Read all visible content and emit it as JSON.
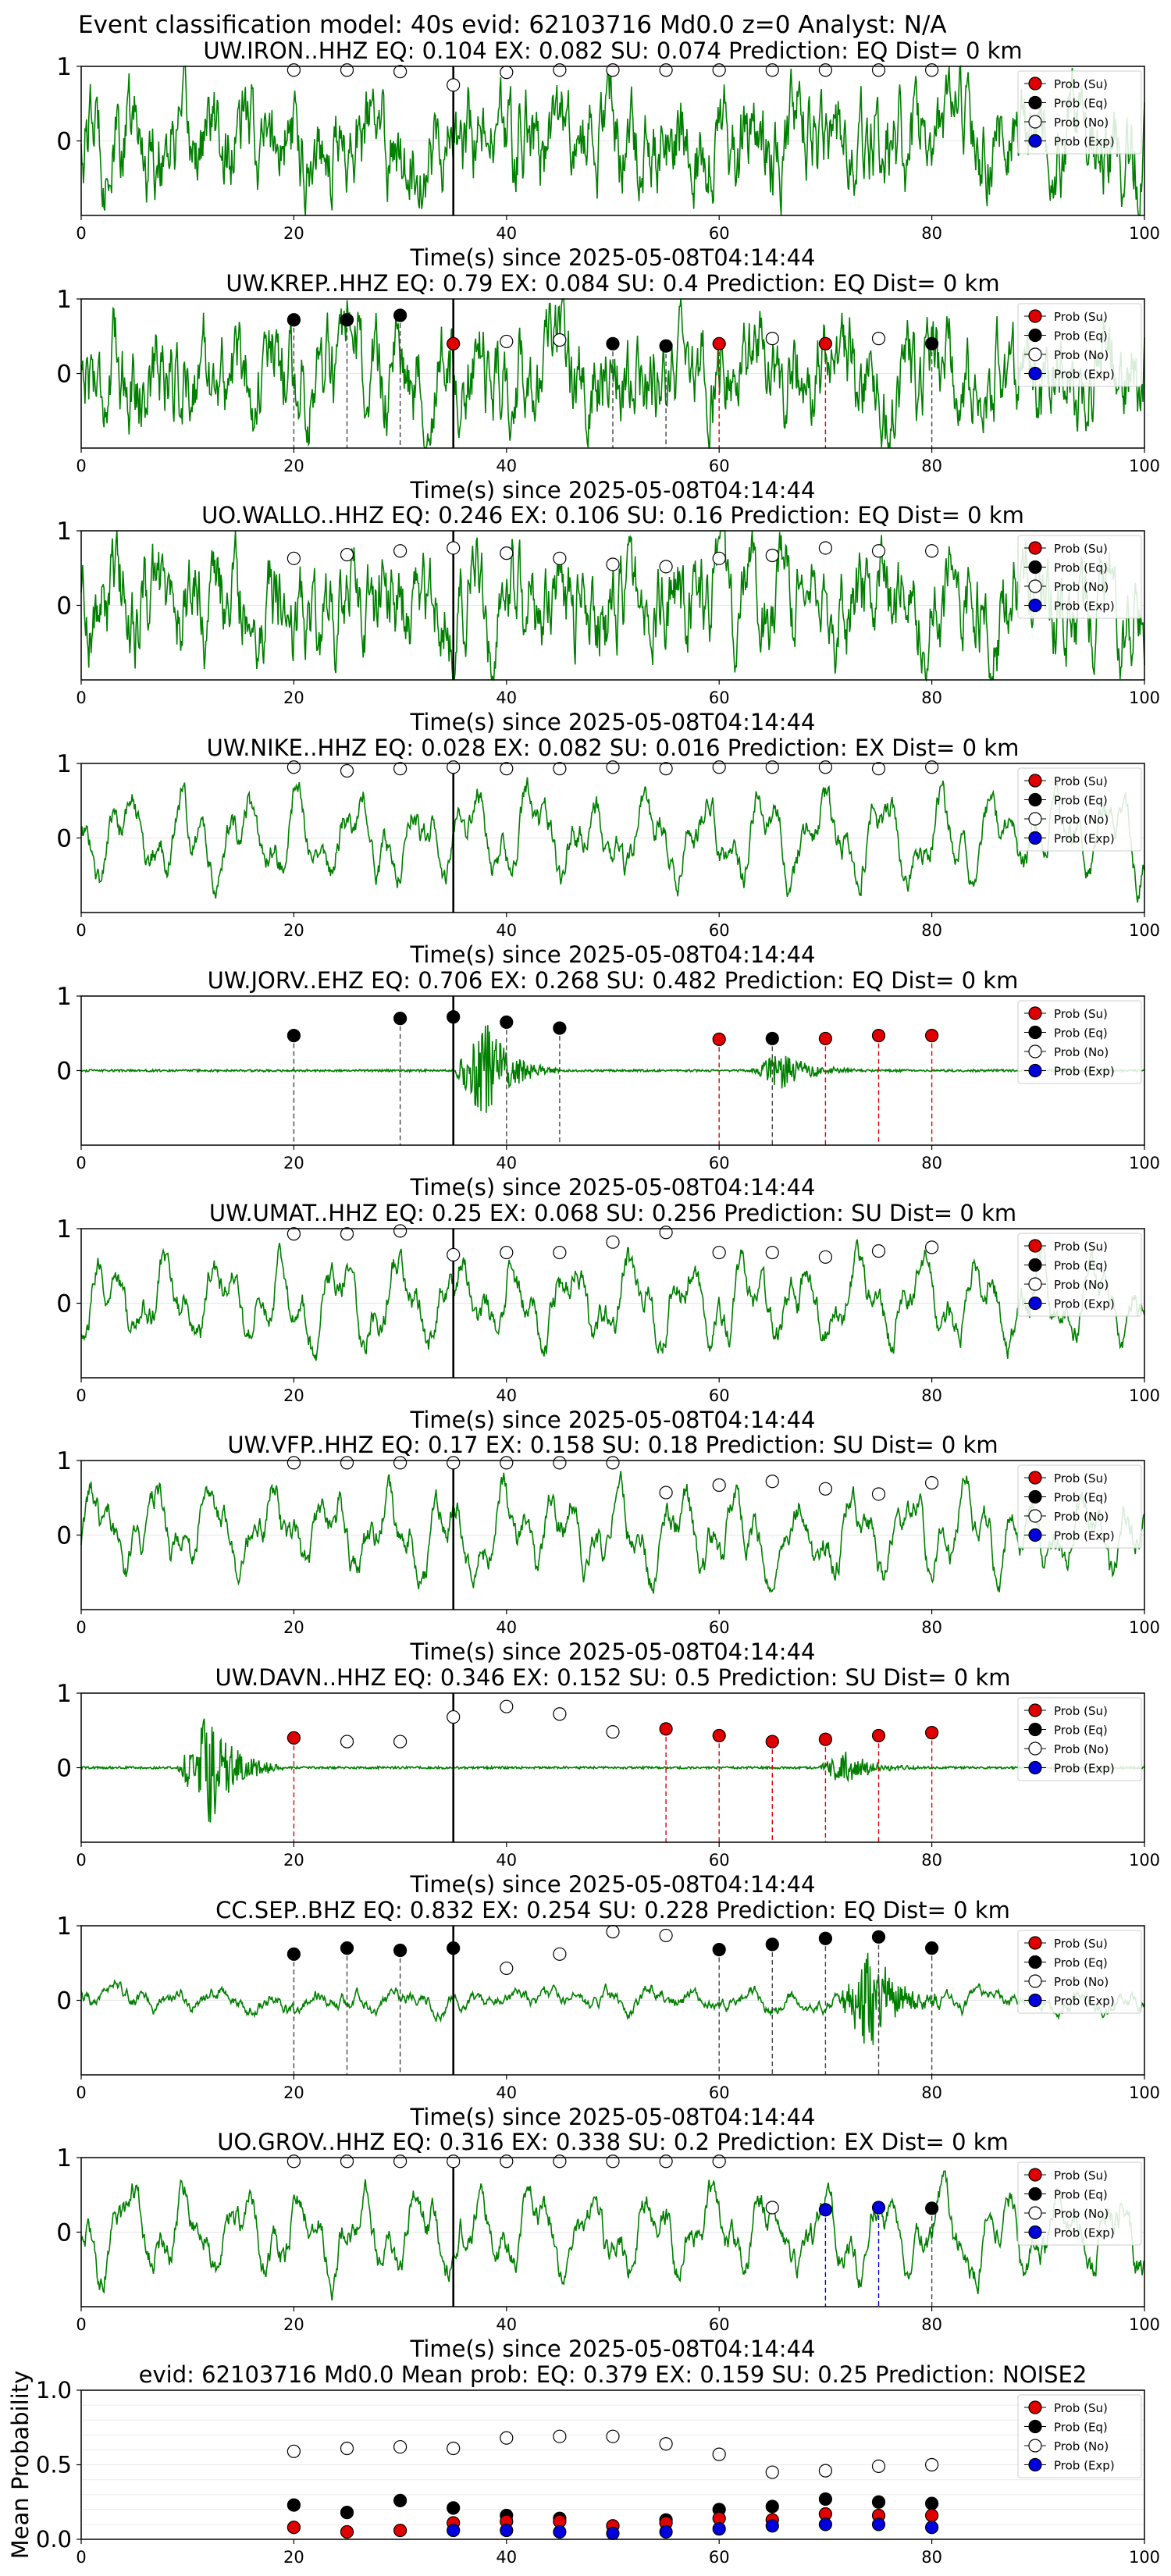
{
  "figure": {
    "suptitle": "Event classification model: 40s evid: 62103716 Md0.0 z=0 Analyst: N/A"
  },
  "legend": {
    "items": [
      {
        "label": "Prob (Su)",
        "face": "#e00000"
      },
      {
        "label": "Prob (Eq)",
        "face": "#000000"
      },
      {
        "label": "Prob (No)",
        "face": "#ffffff"
      },
      {
        "label": "Prob (Exp)",
        "face": "#0000dd"
      }
    ]
  },
  "colors": {
    "waveform": "#008000",
    "su": "#e00000",
    "eq": "#000000",
    "no": "#ffffff",
    "exp": "#0000dd",
    "origin_line": "#000000"
  },
  "chart_data": [
    {
      "type": "line",
      "station": "UW.IRON..HHZ",
      "title": "UW.IRON..HHZ   EQ: 0.104  EX: 0.082  SU: 0.074   Prediction: EQ    Dist= 0 km",
      "xlabel": "Time(s) since 2025-05-08T04:14:44",
      "xlim": [
        0,
        100
      ],
      "ylim": [
        -1,
        1
      ],
      "xticks": [
        0,
        20,
        40,
        60,
        80,
        100
      ],
      "yticks": [
        0,
        1
      ],
      "grid": true,
      "legend": "top-right",
      "origin_time": 35,
      "waveform_style": "noisy",
      "points": [
        {
          "x": 20,
          "y": 0.95,
          "cls": "no"
        },
        {
          "x": 25,
          "y": 0.95,
          "cls": "no"
        },
        {
          "x": 30,
          "y": 0.93,
          "cls": "no"
        },
        {
          "x": 35,
          "y": 0.75,
          "cls": "no"
        },
        {
          "x": 40,
          "y": 0.92,
          "cls": "no"
        },
        {
          "x": 45,
          "y": 0.95,
          "cls": "no"
        },
        {
          "x": 50,
          "y": 0.95,
          "cls": "no"
        },
        {
          "x": 55,
          "y": 0.95,
          "cls": "no"
        },
        {
          "x": 60,
          "y": 0.95,
          "cls": "no"
        },
        {
          "x": 65,
          "y": 0.95,
          "cls": "no"
        },
        {
          "x": 70,
          "y": 0.95,
          "cls": "no"
        },
        {
          "x": 75,
          "y": 0.95,
          "cls": "no"
        },
        {
          "x": 80,
          "y": 0.95,
          "cls": "no"
        }
      ]
    },
    {
      "type": "line",
      "station": "UW.KREP..HHZ",
      "title": "UW.KREP..HHZ   EQ: 0.79  EX: 0.084  SU: 0.4   Prediction: EQ    Dist= 0 km",
      "xlabel": "Time(s) since 2025-05-08T04:14:44",
      "xlim": [
        0,
        100
      ],
      "ylim": [
        -1,
        1
      ],
      "xticks": [
        0,
        20,
        40,
        60,
        80,
        100
      ],
      "yticks": [
        0,
        1
      ],
      "grid": true,
      "legend": "top-right",
      "origin_time": 35,
      "waveform_style": "noisy",
      "points": [
        {
          "x": 20,
          "y": 0.72,
          "cls": "eq"
        },
        {
          "x": 25,
          "y": 0.72,
          "cls": "eq"
        },
        {
          "x": 30,
          "y": 0.78,
          "cls": "eq"
        },
        {
          "x": 35,
          "y": 0.4,
          "cls": "su"
        },
        {
          "x": 40,
          "y": 0.43,
          "cls": "no"
        },
        {
          "x": 45,
          "y": 0.45,
          "cls": "no"
        },
        {
          "x": 50,
          "y": 0.4,
          "cls": "eq"
        },
        {
          "x": 55,
          "y": 0.37,
          "cls": "eq"
        },
        {
          "x": 60,
          "y": 0.4,
          "cls": "su"
        },
        {
          "x": 65,
          "y": 0.47,
          "cls": "no"
        },
        {
          "x": 70,
          "y": 0.4,
          "cls": "su"
        },
        {
          "x": 75,
          "y": 0.47,
          "cls": "no"
        },
        {
          "x": 80,
          "y": 0.4,
          "cls": "eq"
        }
      ]
    },
    {
      "type": "line",
      "station": "UO.WALLO..HHZ",
      "title": "UO.WALLO..HHZ   EQ: 0.246  EX: 0.106  SU: 0.16   Prediction: EQ    Dist= 0 km",
      "xlabel": "Time(s) since 2025-05-08T04:14:44",
      "xlim": [
        0,
        100
      ],
      "ylim": [
        -1,
        1
      ],
      "xticks": [
        0,
        20,
        40,
        60,
        80,
        100
      ],
      "yticks": [
        0,
        1
      ],
      "grid": true,
      "legend": "top-right",
      "origin_time": 35,
      "waveform_style": "noisy",
      "points": [
        {
          "x": 20,
          "y": 0.63,
          "cls": "no"
        },
        {
          "x": 25,
          "y": 0.68,
          "cls": "no"
        },
        {
          "x": 30,
          "y": 0.73,
          "cls": "no"
        },
        {
          "x": 35,
          "y": 0.77,
          "cls": "no"
        },
        {
          "x": 40,
          "y": 0.7,
          "cls": "no"
        },
        {
          "x": 45,
          "y": 0.63,
          "cls": "no"
        },
        {
          "x": 50,
          "y": 0.55,
          "cls": "no"
        },
        {
          "x": 55,
          "y": 0.52,
          "cls": "no"
        },
        {
          "x": 60,
          "y": 0.63,
          "cls": "no"
        },
        {
          "x": 65,
          "y": 0.67,
          "cls": "no"
        },
        {
          "x": 70,
          "y": 0.77,
          "cls": "no"
        },
        {
          "x": 75,
          "y": 0.73,
          "cls": "no"
        },
        {
          "x": 80,
          "y": 0.73,
          "cls": "no"
        }
      ]
    },
    {
      "type": "line",
      "station": "UW.NIKE..HHZ",
      "title": "UW.NIKE..HHZ   EQ: 0.028  EX: 0.082  SU: 0.016   Prediction: EX    Dist= 0 km",
      "xlabel": "Time(s) since 2025-05-08T04:14:44",
      "xlim": [
        0,
        100
      ],
      "ylim": [
        -1,
        1
      ],
      "xticks": [
        0,
        20,
        40,
        60,
        80,
        100
      ],
      "yticks": [
        0,
        1
      ],
      "grid": true,
      "legend": "top-right",
      "origin_time": 35,
      "waveform_style": "wavy",
      "points": [
        {
          "x": 20,
          "y": 0.95,
          "cls": "no"
        },
        {
          "x": 25,
          "y": 0.9,
          "cls": "no"
        },
        {
          "x": 30,
          "y": 0.93,
          "cls": "no"
        },
        {
          "x": 35,
          "y": 0.95,
          "cls": "no"
        },
        {
          "x": 40,
          "y": 0.93,
          "cls": "no"
        },
        {
          "x": 45,
          "y": 0.93,
          "cls": "no"
        },
        {
          "x": 50,
          "y": 0.95,
          "cls": "no"
        },
        {
          "x": 55,
          "y": 0.93,
          "cls": "no"
        },
        {
          "x": 60,
          "y": 0.95,
          "cls": "no"
        },
        {
          "x": 65,
          "y": 0.95,
          "cls": "no"
        },
        {
          "x": 70,
          "y": 0.95,
          "cls": "no"
        },
        {
          "x": 75,
          "y": 0.93,
          "cls": "no"
        },
        {
          "x": 80,
          "y": 0.95,
          "cls": "no"
        }
      ]
    },
    {
      "type": "line",
      "station": "UW.JORV..EHZ",
      "title": "UW.JORV..EHZ   EQ: 0.706  EX: 0.268  SU: 0.482   Prediction: EQ    Dist= 0 km",
      "xlabel": "Time(s) since 2025-05-08T04:14:44",
      "xlim": [
        0,
        100
      ],
      "ylim": [
        -1,
        1
      ],
      "xticks": [
        0,
        20,
        40,
        60,
        80,
        100
      ],
      "yticks": [
        0,
        1
      ],
      "grid": true,
      "legend": "top-right",
      "origin_time": 35,
      "waveform_style": "quiet",
      "bursts": [
        [
          38,
          0.7
        ],
        [
          66,
          0.3
        ]
      ],
      "points": [
        {
          "x": 20,
          "y": 0.47,
          "cls": "eq"
        },
        {
          "x": 30,
          "y": 0.7,
          "cls": "eq"
        },
        {
          "x": 35,
          "y": 0.72,
          "cls": "eq"
        },
        {
          "x": 40,
          "y": 0.65,
          "cls": "eq"
        },
        {
          "x": 45,
          "y": 0.57,
          "cls": "eq"
        },
        {
          "x": 60,
          "y": 0.42,
          "cls": "su"
        },
        {
          "x": 65,
          "y": 0.43,
          "cls": "eq"
        },
        {
          "x": 70,
          "y": 0.43,
          "cls": "su"
        },
        {
          "x": 75,
          "y": 0.47,
          "cls": "su"
        },
        {
          "x": 80,
          "y": 0.47,
          "cls": "su"
        }
      ]
    },
    {
      "type": "line",
      "station": "UW.UMAT..HHZ",
      "title": "UW.UMAT..HHZ   EQ: 0.25  EX: 0.068  SU: 0.256   Prediction: SU    Dist= 0 km",
      "xlabel": "Time(s) since 2025-05-08T04:14:44",
      "xlim": [
        0,
        100
      ],
      "ylim": [
        -1,
        1
      ],
      "xticks": [
        0,
        20,
        40,
        60,
        80,
        100
      ],
      "yticks": [
        0,
        1
      ],
      "grid": true,
      "legend": "top-right",
      "origin_time": 35,
      "waveform_style": "wavy",
      "points": [
        {
          "x": 20,
          "y": 0.93,
          "cls": "no"
        },
        {
          "x": 25,
          "y": 0.93,
          "cls": "no"
        },
        {
          "x": 30,
          "y": 0.97,
          "cls": "no"
        },
        {
          "x": 35,
          "y": 0.65,
          "cls": "no"
        },
        {
          "x": 40,
          "y": 0.68,
          "cls": "no"
        },
        {
          "x": 45,
          "y": 0.68,
          "cls": "no"
        },
        {
          "x": 50,
          "y": 0.82,
          "cls": "no"
        },
        {
          "x": 55,
          "y": 0.95,
          "cls": "no"
        },
        {
          "x": 60,
          "y": 0.68,
          "cls": "no"
        },
        {
          "x": 65,
          "y": 0.68,
          "cls": "no"
        },
        {
          "x": 70,
          "y": 0.62,
          "cls": "no"
        },
        {
          "x": 75,
          "y": 0.7,
          "cls": "no"
        },
        {
          "x": 80,
          "y": 0.75,
          "cls": "no"
        }
      ]
    },
    {
      "type": "line",
      "station": "UW.VFP..HHZ",
      "title": "UW.VFP..HHZ   EQ: 0.17  EX: 0.158  SU: 0.18   Prediction: SU    Dist= 0 km",
      "xlabel": "Time(s) since 2025-05-08T04:14:44",
      "xlim": [
        0,
        100
      ],
      "ylim": [
        -1,
        1
      ],
      "xticks": [
        0,
        20,
        40,
        60,
        80,
        100
      ],
      "yticks": [
        0,
        1
      ],
      "grid": true,
      "legend": "top-right",
      "origin_time": 35,
      "waveform_style": "wavy",
      "points": [
        {
          "x": 20,
          "y": 0.97,
          "cls": "no"
        },
        {
          "x": 25,
          "y": 0.97,
          "cls": "no"
        },
        {
          "x": 30,
          "y": 0.97,
          "cls": "no"
        },
        {
          "x": 35,
          "y": 0.97,
          "cls": "no"
        },
        {
          "x": 40,
          "y": 0.97,
          "cls": "no"
        },
        {
          "x": 45,
          "y": 0.97,
          "cls": "no"
        },
        {
          "x": 50,
          "y": 0.97,
          "cls": "no"
        },
        {
          "x": 55,
          "y": 0.57,
          "cls": "no"
        },
        {
          "x": 60,
          "y": 0.67,
          "cls": "no"
        },
        {
          "x": 65,
          "y": 0.72,
          "cls": "no"
        },
        {
          "x": 70,
          "y": 0.62,
          "cls": "no"
        },
        {
          "x": 75,
          "y": 0.55,
          "cls": "no"
        },
        {
          "x": 80,
          "y": 0.7,
          "cls": "no"
        }
      ]
    },
    {
      "type": "line",
      "station": "UW.DAVN..HHZ",
      "title": "UW.DAVN..HHZ   EQ: 0.346  EX: 0.152  SU: 0.5   Prediction: SU    Dist= 0 km",
      "xlabel": "Time(s) since 2025-05-08T04:14:44",
      "xlim": [
        0,
        100
      ],
      "ylim": [
        -1,
        1
      ],
      "xticks": [
        0,
        20,
        40,
        60,
        80,
        100
      ],
      "yticks": [
        0,
        1
      ],
      "grid": true,
      "legend": "top-right",
      "origin_time": 35,
      "waveform_style": "quiet",
      "bursts": [
        [
          12,
          0.85
        ],
        [
          72,
          0.25
        ]
      ],
      "points": [
        {
          "x": 20,
          "y": 0.4,
          "cls": "su"
        },
        {
          "x": 25,
          "y": 0.35,
          "cls": "no"
        },
        {
          "x": 30,
          "y": 0.35,
          "cls": "no"
        },
        {
          "x": 35,
          "y": 0.68,
          "cls": "no"
        },
        {
          "x": 40,
          "y": 0.82,
          "cls": "no"
        },
        {
          "x": 45,
          "y": 0.72,
          "cls": "no"
        },
        {
          "x": 50,
          "y": 0.48,
          "cls": "no"
        },
        {
          "x": 55,
          "y": 0.52,
          "cls": "su"
        },
        {
          "x": 60,
          "y": 0.43,
          "cls": "su"
        },
        {
          "x": 65,
          "y": 0.35,
          "cls": "su"
        },
        {
          "x": 70,
          "y": 0.38,
          "cls": "su"
        },
        {
          "x": 75,
          "y": 0.43,
          "cls": "su"
        },
        {
          "x": 80,
          "y": 0.47,
          "cls": "su"
        }
      ]
    },
    {
      "type": "line",
      "station": "CC.SEP..BHZ",
      "title": "CC.SEP..BHZ   EQ: 0.832  EX: 0.254  SU: 0.228   Prediction: EQ    Dist= 0 km",
      "xlabel": "Time(s) since 2025-05-08T04:14:44",
      "xlim": [
        0,
        100
      ],
      "ylim": [
        -1,
        1
      ],
      "xticks": [
        0,
        20,
        40,
        60,
        80,
        100
      ],
      "yticks": [
        0,
        1
      ],
      "grid": true,
      "legend": "top-right",
      "origin_time": 35,
      "waveform_style": "low",
      "bursts": [
        [
          74,
          0.75
        ]
      ],
      "points": [
        {
          "x": 20,
          "y": 0.62,
          "cls": "eq"
        },
        {
          "x": 25,
          "y": 0.7,
          "cls": "eq"
        },
        {
          "x": 30,
          "y": 0.67,
          "cls": "eq"
        },
        {
          "x": 35,
          "y": 0.7,
          "cls": "eq"
        },
        {
          "x": 40,
          "y": 0.43,
          "cls": "no"
        },
        {
          "x": 45,
          "y": 0.62,
          "cls": "no"
        },
        {
          "x": 50,
          "y": 0.92,
          "cls": "no"
        },
        {
          "x": 55,
          "y": 0.87,
          "cls": "no"
        },
        {
          "x": 60,
          "y": 0.68,
          "cls": "eq"
        },
        {
          "x": 65,
          "y": 0.75,
          "cls": "eq"
        },
        {
          "x": 70,
          "y": 0.83,
          "cls": "eq"
        },
        {
          "x": 75,
          "y": 0.85,
          "cls": "eq"
        },
        {
          "x": 80,
          "y": 0.7,
          "cls": "eq"
        }
      ]
    },
    {
      "type": "line",
      "station": "UO.GROV..HHZ",
      "title": "UO.GROV..HHZ   EQ: 0.316  EX: 0.338  SU: 0.2   Prediction: EX    Dist= 0 km",
      "xlabel": "Time(s) since 2025-05-08T04:14:44",
      "xlim": [
        0,
        100
      ],
      "ylim": [
        -1,
        1
      ],
      "xticks": [
        0,
        20,
        40,
        60,
        80,
        100
      ],
      "yticks": [
        0,
        1
      ],
      "grid": true,
      "legend": "top-right",
      "origin_time": 35,
      "waveform_style": "wavy",
      "points": [
        {
          "x": 20,
          "y": 0.95,
          "cls": "no"
        },
        {
          "x": 25,
          "y": 0.95,
          "cls": "no"
        },
        {
          "x": 30,
          "y": 0.95,
          "cls": "no"
        },
        {
          "x": 35,
          "y": 0.95,
          "cls": "no"
        },
        {
          "x": 40,
          "y": 0.95,
          "cls": "no"
        },
        {
          "x": 45,
          "y": 0.95,
          "cls": "no"
        },
        {
          "x": 50,
          "y": 0.95,
          "cls": "no"
        },
        {
          "x": 55,
          "y": 0.95,
          "cls": "no"
        },
        {
          "x": 60,
          "y": 0.95,
          "cls": "no"
        },
        {
          "x": 65,
          "y": 0.33,
          "cls": "no"
        },
        {
          "x": 70,
          "y": 0.3,
          "cls": "exp"
        },
        {
          "x": 75,
          "y": 0.33,
          "cls": "exp"
        },
        {
          "x": 80,
          "y": 0.32,
          "cls": "eq"
        }
      ]
    },
    {
      "type": "scatter",
      "panel": "mean",
      "title": "evid: 62103716  Md0.0  Mean prob:   EQ: 0.379  EX: 0.159  SU: 0.25   Prediction: NOISE2",
      "ylabel": "Mean Probability",
      "xlim": [
        0,
        100
      ],
      "ylim": [
        0,
        1.0
      ],
      "xticks": [
        0,
        20,
        40,
        60,
        80,
        100
      ],
      "yticks": [
        0.0,
        0.5,
        1.0
      ],
      "ytick_labels": [
        "0.0",
        "0.5",
        "1.0"
      ],
      "grid": true,
      "legend": "top-right",
      "x": [
        20,
        25,
        30,
        35,
        40,
        45,
        50,
        55,
        60,
        65,
        70,
        75,
        80
      ],
      "series": [
        {
          "name": "Prob (No)",
          "cls": "no",
          "values": [
            0.59,
            0.61,
            0.62,
            0.61,
            0.68,
            0.69,
            0.69,
            0.64,
            0.57,
            0.45,
            0.46,
            0.49,
            0.5
          ]
        },
        {
          "name": "Prob (Eq)",
          "cls": "eq",
          "values": [
            0.23,
            0.18,
            0.26,
            0.21,
            0.16,
            0.14,
            0.09,
            0.13,
            0.2,
            0.22,
            0.27,
            0.25,
            0.24
          ]
        },
        {
          "name": "Prob (Su)",
          "cls": "su",
          "values": [
            0.08,
            0.05,
            0.06,
            0.11,
            0.12,
            0.12,
            0.09,
            0.11,
            0.14,
            0.13,
            0.17,
            0.16,
            0.16
          ]
        },
        {
          "name": "Prob (Exp)",
          "cls": "exp",
          "values": [
            null,
            null,
            null,
            0.06,
            0.06,
            0.05,
            0.04,
            0.05,
            0.07,
            0.09,
            0.1,
            0.1,
            0.08
          ]
        }
      ]
    }
  ]
}
